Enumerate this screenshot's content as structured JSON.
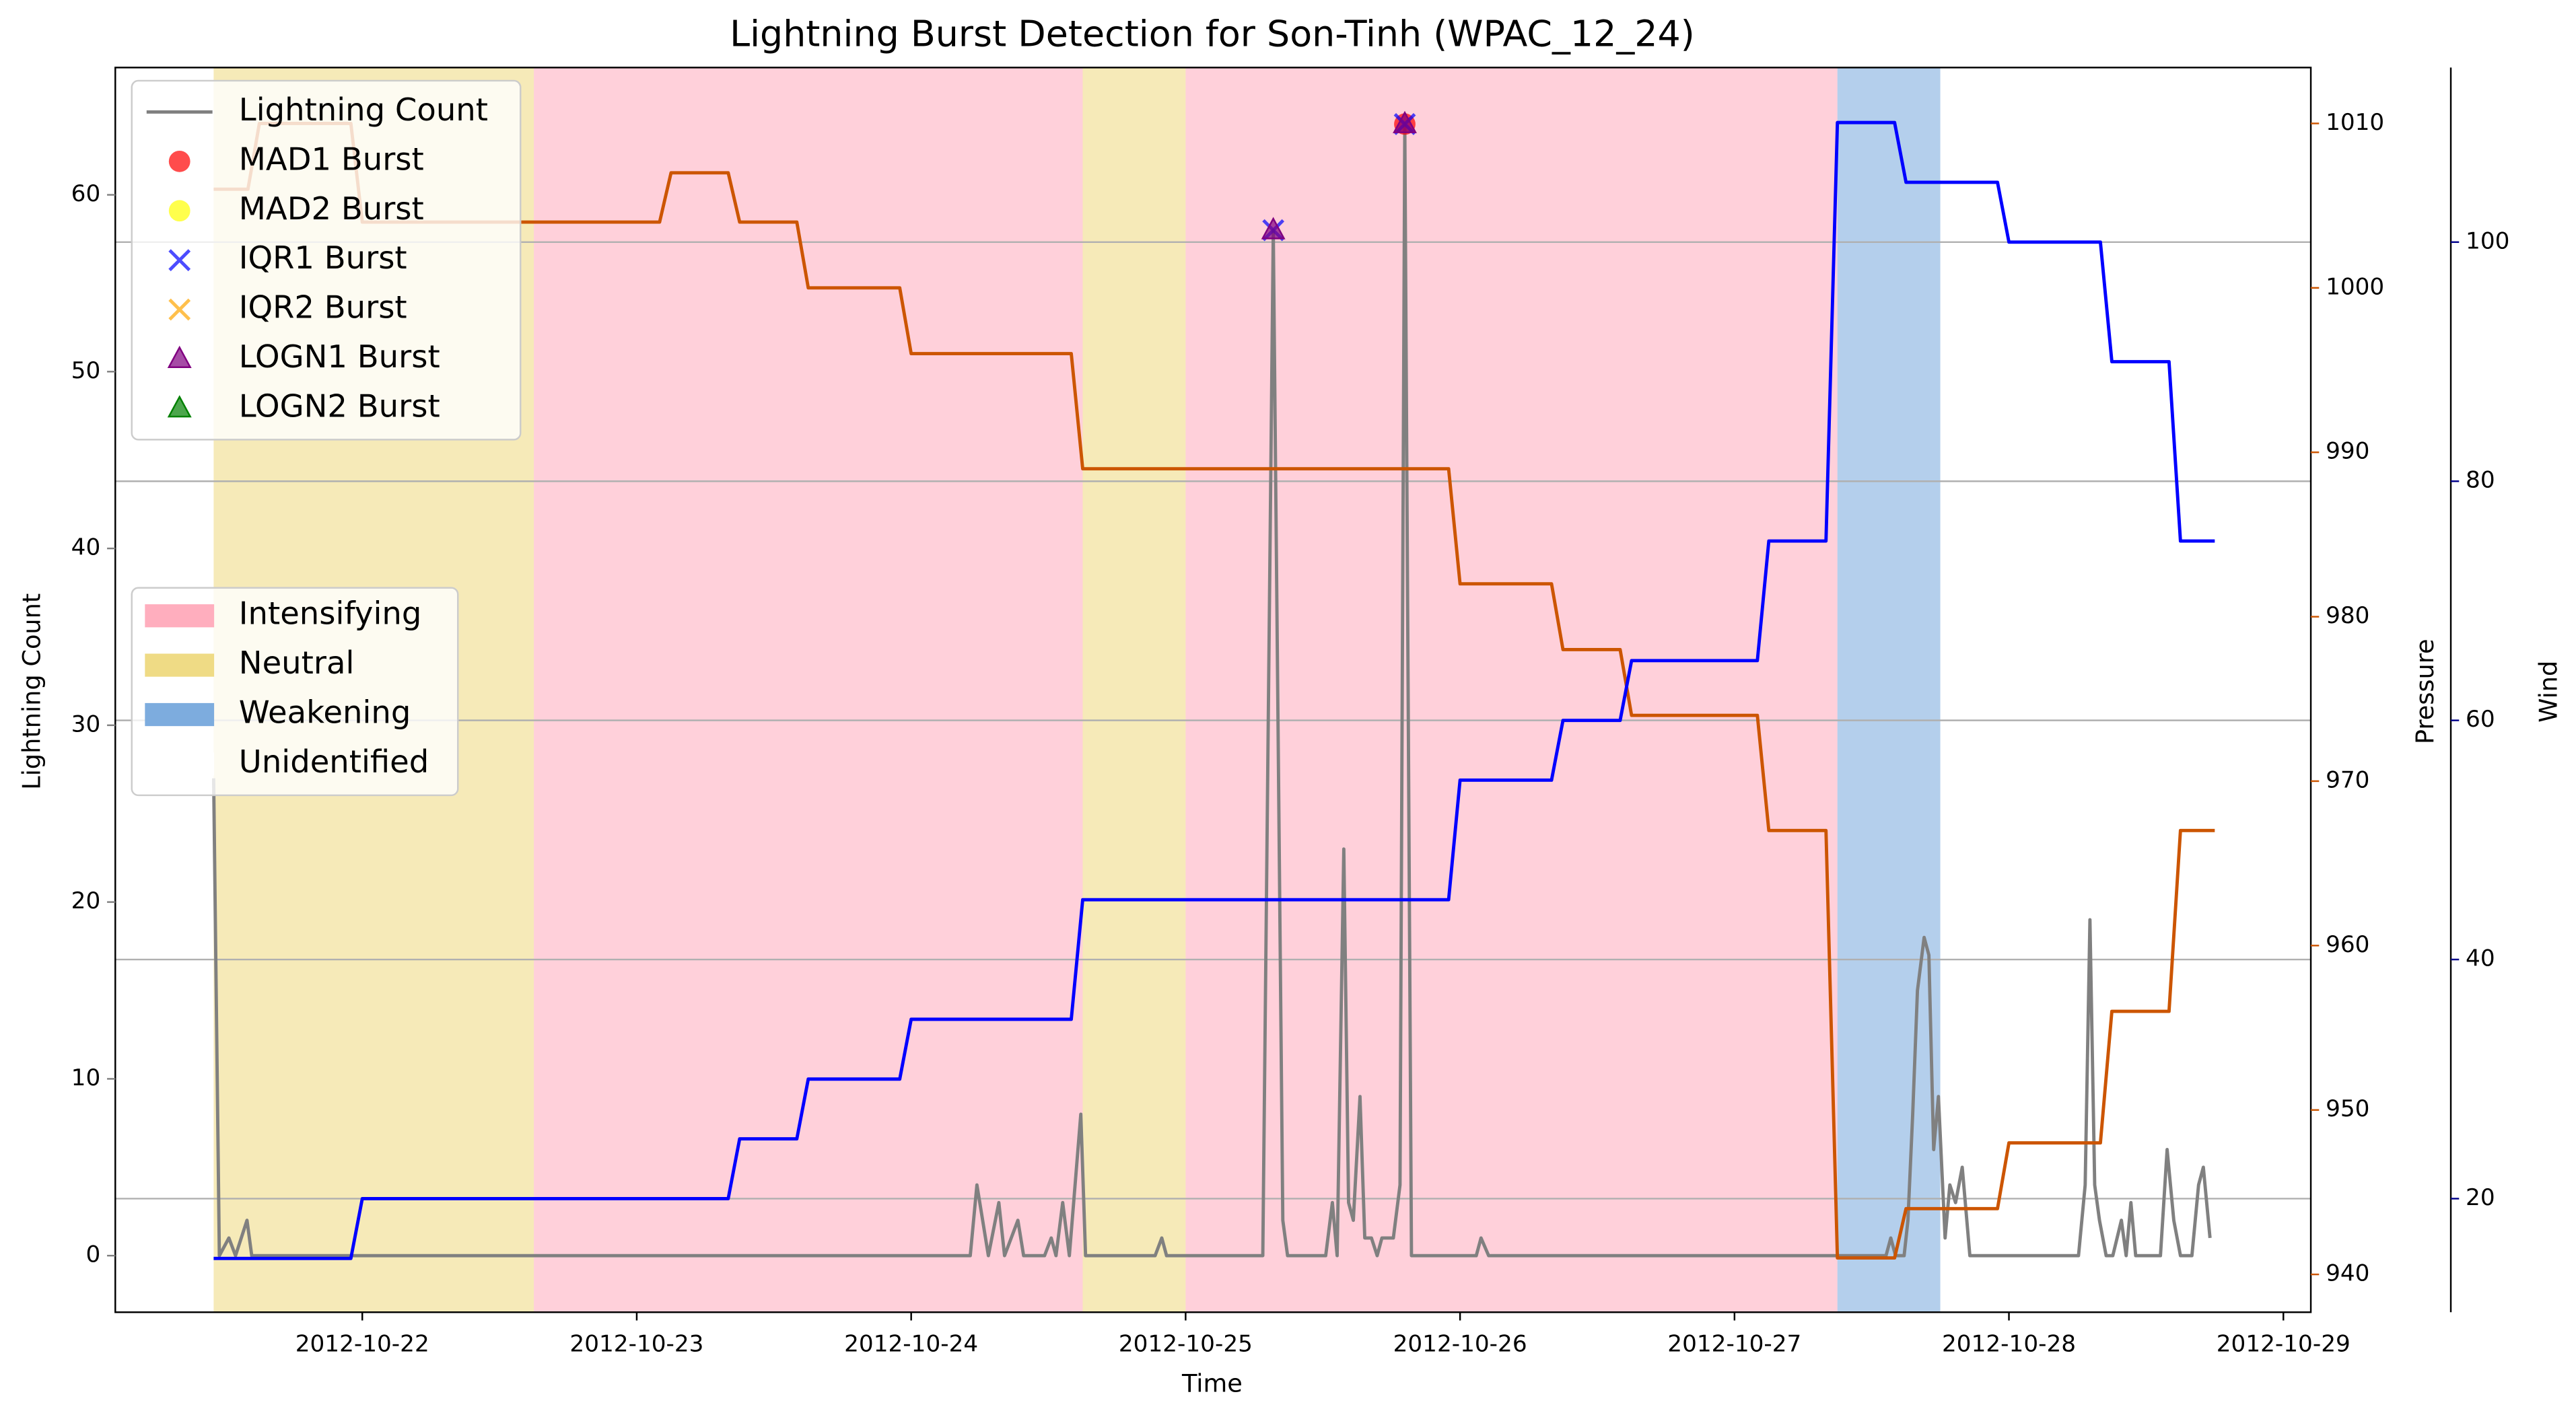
{
  "chart_data": {
    "type": "line",
    "title": "Lightning Burst Detection for Son-Tinh (WPAC_12_24)",
    "x_label": "Time",
    "y_label": "Lightning Count",
    "y2_label": "Pressure",
    "y3_label": "Wind",
    "xlim": [
      "2012-10-21 02:24",
      "2012-10-29 02:24"
    ],
    "xticks": [
      "2012-10-22",
      "2012-10-23",
      "2012-10-24",
      "2012-10-25",
      "2012-10-26",
      "2012-10-27",
      "2012-10-28",
      "2012-10-29"
    ],
    "ylim": [
      -3.2,
      67.2
    ],
    "yticks": [
      0,
      10,
      20,
      30,
      40,
      50,
      60
    ],
    "y_color": "#808080",
    "y2lim": [
      937.7,
      1013.4
    ],
    "y2ticks": [
      940,
      950,
      960,
      970,
      980,
      990,
      1000,
      1010
    ],
    "y2_color": "#cc5500",
    "y3lim": [
      10.5,
      114.6
    ],
    "y3ticks": [
      20,
      40,
      60,
      80,
      100
    ],
    "y3_color": "#00008b",
    "grid": "y3",
    "legend_loc": "upper left",
    "phase_legend_loc": "center left",
    "phases": [
      {
        "name": "Intensifying",
        "color": "#ffaabb",
        "spans": [
          [
            "2012-10-22 15:00",
            "2012-10-24 15:00"
          ],
          [
            "2012-10-25 00:00",
            "2012-10-27 09:00"
          ]
        ]
      },
      {
        "name": "Neutral",
        "color": "#eed97e",
        "spans": [
          [
            "2012-10-21 11:00",
            "2012-10-22 15:00"
          ],
          [
            "2012-10-24 15:00",
            "2012-10-25 00:00"
          ]
        ]
      },
      {
        "name": "Weakening",
        "color": "#76a8dc",
        "spans": [
          [
            "2012-10-27 09:00",
            "2012-10-27 18:00"
          ]
        ]
      },
      {
        "name": "Unidentified",
        "color": "#ffffff",
        "spans": [
          [
            "2012-10-27 18:00",
            "2012-10-28 18:00"
          ]
        ]
      }
    ],
    "series": [
      {
        "name": "Lightning Count",
        "color": "#808080",
        "axis": "y",
        "x": [
          "2012-10-21 11:00",
          "2012-10-21 11:30",
          "2012-10-21 12:20",
          "2012-10-21 12:55",
          "2012-10-21 13:55",
          "2012-10-21 14:20",
          "2012-10-24 05:10",
          "2012-10-24 05:45",
          "2012-10-24 06:45",
          "2012-10-24 07:40",
          "2012-10-24 08:10",
          "2012-10-24 09:20",
          "2012-10-24 09:50",
          "2012-10-24 11:40",
          "2012-10-24 12:15",
          "2012-10-24 12:40",
          "2012-10-24 13:15",
          "2012-10-24 13:50",
          "2012-10-24 14:50",
          "2012-10-24 15:15",
          "2012-10-24 21:20",
          "2012-10-24 21:55",
          "2012-10-24 22:20",
          "2012-10-25 06:45",
          "2012-10-25 07:40",
          "2012-10-25 08:30",
          "2012-10-25 08:55",
          "2012-10-25 12:15",
          "2012-10-25 12:50",
          "2012-10-25 13:15",
          "2012-10-25 13:50",
          "2012-10-25 14:15",
          "2012-10-25 14:40",
          "2012-10-25 15:15",
          "2012-10-25 15:40",
          "2012-10-25 16:15",
          "2012-10-25 16:45",
          "2012-10-25 17:10",
          "2012-10-25 18:10",
          "2012-10-25 18:45",
          "2012-10-25 19:10",
          "2012-10-25 19:45",
          "2012-10-26 01:25",
          "2012-10-26 01:50",
          "2012-10-26 02:30",
          "2012-10-27 13:15",
          "2012-10-27 13:40",
          "2012-10-27 14:05",
          "2012-10-27 14:50",
          "2012-10-27 15:10",
          "2012-10-27 15:35",
          "2012-10-27 16:00",
          "2012-10-27 16:35",
          "2012-10-27 17:00",
          "2012-10-27 17:25",
          "2012-10-27 17:50",
          "2012-10-27 18:25",
          "2012-10-27 18:50",
          "2012-10-27 19:20",
          "2012-10-27 19:55",
          "2012-10-27 20:35",
          "2012-10-28 06:05",
          "2012-10-28 06:40",
          "2012-10-28 07:05",
          "2012-10-28 07:30",
          "2012-10-28 07:55",
          "2012-10-28 08:30",
          "2012-10-28 09:05",
          "2012-10-28 09:50",
          "2012-10-28 10:15",
          "2012-10-28 10:40",
          "2012-10-28 11:05",
          "2012-10-28 13:15",
          "2012-10-28 13:50",
          "2012-10-28 14:25",
          "2012-10-28 15:00",
          "2012-10-28 16:00",
          "2012-10-28 16:35",
          "2012-10-28 17:00",
          "2012-10-28 17:35"
        ],
        "values": [
          27,
          0,
          1,
          0,
          2,
          0,
          0,
          4,
          0,
          3,
          0,
          2,
          0,
          0,
          1,
          0,
          3,
          0,
          8,
          0,
          0,
          1,
          0,
          0,
          58,
          2,
          0,
          0,
          3,
          0,
          23,
          3,
          2,
          9,
          1,
          1,
          0,
          1,
          1,
          4,
          64,
          0,
          0,
          1,
          0,
          0,
          1,
          0,
          0,
          2,
          8,
          15,
          18,
          17,
          6,
          9,
          1,
          4,
          3,
          5,
          0,
          0,
          4,
          19,
          4,
          2,
          0,
          0,
          2,
          0,
          3,
          0,
          0,
          6,
          2,
          0,
          0,
          4,
          5,
          1
        ]
      },
      {
        "color": "#cc5500",
        "axis": "y2",
        "x": [
          "2012-10-21 11:00",
          "2012-10-21 14:00",
          "2012-10-21 15:00",
          "2012-10-21 23:00",
          "2012-10-22 00:00",
          "2012-10-23 02:00",
          "2012-10-23 03:00",
          "2012-10-23 08:00",
          "2012-10-23 09:00",
          "2012-10-23 14:00",
          "2012-10-23 15:00",
          "2012-10-23 23:00",
          "2012-10-24 00:00",
          "2012-10-24 14:00",
          "2012-10-24 15:00",
          "2012-10-25 23:00",
          "2012-10-26 00:00",
          "2012-10-26 08:00",
          "2012-10-26 09:00",
          "2012-10-26 14:00",
          "2012-10-26 15:00",
          "2012-10-27 02:00",
          "2012-10-27 03:00",
          "2012-10-27 08:00",
          "2012-10-27 09:00",
          "2012-10-27 14:00",
          "2012-10-27 15:00",
          "2012-10-27 23:00",
          "2012-10-28 00:00",
          "2012-10-28 08:00",
          "2012-10-28 09:00",
          "2012-10-28 14:00",
          "2012-10-28 15:00",
          "2012-10-28 18:00"
        ],
        "values": [
          1006,
          1006,
          1010,
          1010,
          1004,
          1004,
          1007,
          1007,
          1004,
          1004,
          1000,
          1000,
          996,
          996,
          989,
          989,
          982,
          982,
          978,
          978,
          974,
          974,
          967,
          967,
          941,
          941,
          944,
          944,
          948,
          948,
          956,
          956,
          967,
          967
        ]
      },
      {
        "color": "#0000ff",
        "axis": "y3",
        "x": [
          "2012-10-21 11:00",
          "2012-10-21 23:00",
          "2012-10-22 00:00",
          "2012-10-23 08:00",
          "2012-10-23 09:00",
          "2012-10-23 14:00",
          "2012-10-23 15:00",
          "2012-10-23 23:00",
          "2012-10-24 00:00",
          "2012-10-24 14:00",
          "2012-10-24 15:00",
          "2012-10-25 23:00",
          "2012-10-26 00:00",
          "2012-10-26 08:00",
          "2012-10-26 09:00",
          "2012-10-26 14:00",
          "2012-10-26 15:00",
          "2012-10-27 02:00",
          "2012-10-27 03:00",
          "2012-10-27 08:00",
          "2012-10-27 09:00",
          "2012-10-27 14:00",
          "2012-10-27 15:00",
          "2012-10-27 23:00",
          "2012-10-28 00:00",
          "2012-10-28 08:00",
          "2012-10-28 09:00",
          "2012-10-28 14:00",
          "2012-10-28 15:00",
          "2012-10-28 18:00"
        ],
        "values": [
          15,
          15,
          20,
          20,
          25,
          25,
          30,
          30,
          35,
          35,
          45,
          45,
          55,
          55,
          60,
          60,
          65,
          65,
          75,
          75,
          110,
          110,
          105,
          105,
          100,
          100,
          90,
          90,
          75,
          75
        ]
      },
      {
        "name": "MAD1 Burst",
        "color": "#ff0000",
        "marker": "o",
        "axis": "y",
        "x": [
          "2012-10-25 19:10"
        ],
        "values": [
          64
        ]
      },
      {
        "name": "MAD2 Burst",
        "color": "#ffff00",
        "marker": "o",
        "axis": "y",
        "x": [],
        "values": []
      },
      {
        "name": "IQR1 Burst",
        "color": "#0000ff",
        "marker": "x",
        "axis": "y",
        "x": [
          "2012-10-25 07:40",
          "2012-10-25 19:10"
        ],
        "values": [
          58,
          64
        ]
      },
      {
        "name": "IQR2 Burst",
        "color": "#ffa500",
        "marker": "x",
        "axis": "y",
        "x": [],
        "values": []
      },
      {
        "name": "LOGN1 Burst",
        "color": "#800080",
        "marker": "^",
        "axis": "y",
        "x": [
          "2012-10-25 07:40",
          "2012-10-25 19:10"
        ],
        "values": [
          58,
          64
        ]
      },
      {
        "name": "LOGN2 Burst",
        "color": "#008000",
        "marker": "^",
        "axis": "y",
        "x": [],
        "values": []
      }
    ]
  }
}
